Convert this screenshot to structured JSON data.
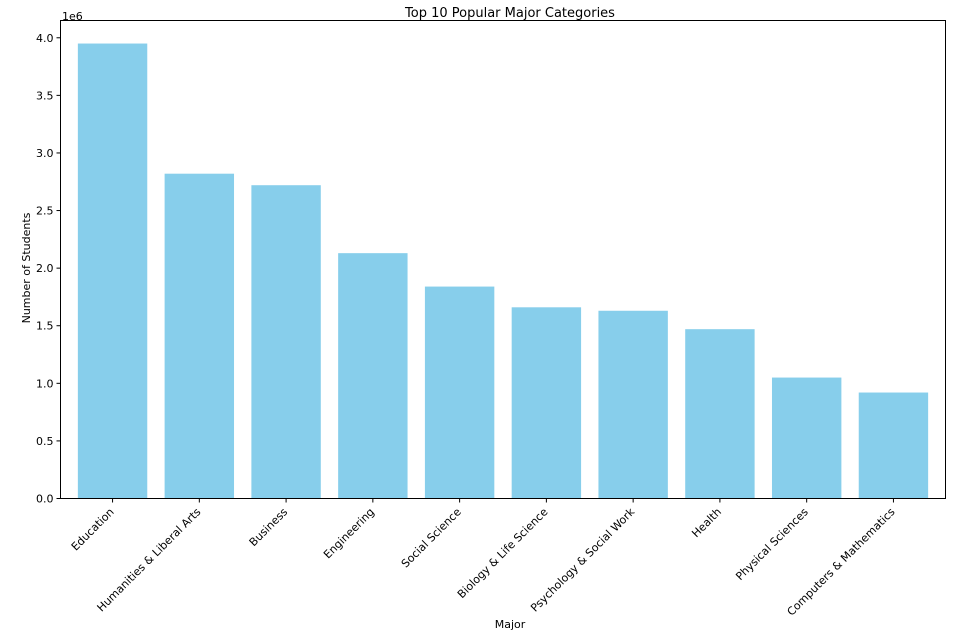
{
  "chart_data": {
    "type": "bar",
    "title": "Top 10 Popular Major Categories",
    "xlabel": "Major",
    "ylabel": "Number of Students",
    "y_offset_label": "1e6",
    "categories": [
      "Education",
      "Humanities & Liberal Arts",
      "Business",
      "Engineering",
      "Social Science",
      "Biology & Life Science",
      "Psychology & Social Work",
      "Health",
      "Physical Sciences",
      "Computers & Mathematics"
    ],
    "values": [
      3950000,
      2820000,
      2720000,
      2130000,
      1840000,
      1660000,
      1630000,
      1470000,
      1050000,
      920000
    ],
    "ylim": [
      0,
      4150000
    ],
    "y_ticks": [
      0,
      500000,
      1000000,
      1500000,
      2000000,
      2500000,
      3000000,
      3500000,
      4000000
    ],
    "y_tick_labels": [
      "0.0",
      "0.5",
      "1.0",
      "1.5",
      "2.0",
      "2.5",
      "3.0",
      "3.5",
      "4.0"
    ],
    "bar_color": "#87CEEB",
    "grid": false,
    "legend": "none"
  }
}
